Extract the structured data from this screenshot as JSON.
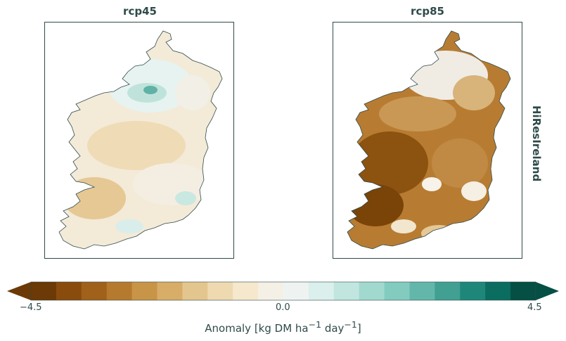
{
  "panels": [
    {
      "title": "rcp45"
    },
    {
      "title": "rcp85"
    }
  ],
  "row_label": "HiResIreland",
  "colorbar": {
    "label": "Anomaly [kg DM ha",
    "unit_sup1": "−1",
    "unit_mid": " day",
    "unit_sup2": "−1",
    "unit_end": "]",
    "ticks": [
      "−4.5",
      "0.0",
      "4.5"
    ],
    "vmin": -4.5,
    "vmax": 4.5,
    "colors": [
      "#6b3a06",
      "#8a4c0c",
      "#a0611a",
      "#b67a2e",
      "#c89448",
      "#d7ad68",
      "#e3c68e",
      "#eed9b0",
      "#f5e8cd",
      "#f4f0e6",
      "#eef3f2",
      "#dbefec",
      "#c0e6df",
      "#a2d9cf",
      "#84cbbf",
      "#63b7aa",
      "#41a092",
      "#1f877a",
      "#0b6c60",
      "#054f44"
    ],
    "extend": "both"
  },
  "colors": {
    "land_outline": "#2f4a4a",
    "frame": "#2f4a4a"
  }
}
